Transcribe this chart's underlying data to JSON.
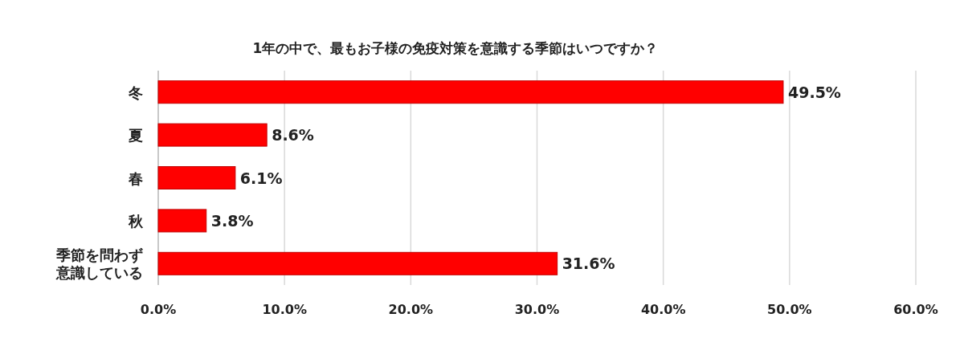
{
  "chart_data": {
    "type": "bar",
    "orientation": "horizontal",
    "title": "1年の中で、最もお子様の免疫対策を意識する季節はいつですか？",
    "categories": [
      "冬",
      "夏",
      "春",
      "秋",
      "季節を問わず意識している"
    ],
    "values": [
      49.5,
      8.6,
      6.1,
      3.8,
      31.6
    ],
    "value_labels": [
      "49.5%",
      "8.6%",
      "6.1%",
      "3.8%",
      "31.6%"
    ],
    "color": "#ff0000",
    "xlim": [
      0,
      60
    ],
    "xticks": [
      {
        "value": 0,
        "label": "0.0%"
      },
      {
        "value": 10,
        "label": "10.0%"
      },
      {
        "value": 20,
        "label": "20.0%"
      },
      {
        "value": 30,
        "label": "30.0%"
      },
      {
        "value": 40,
        "label": "40.0%"
      },
      {
        "value": 50,
        "label": "50.0%"
      },
      {
        "value": 60,
        "label": "60.0%"
      }
    ],
    "grid": "x"
  }
}
